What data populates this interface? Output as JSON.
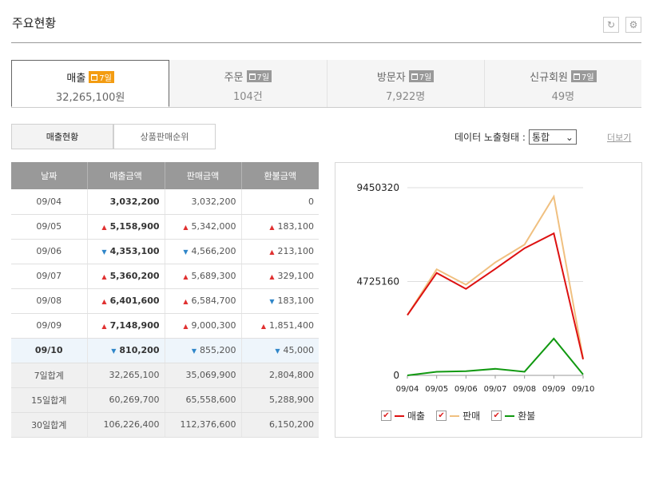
{
  "header": {
    "title": "주요현황"
  },
  "summary": [
    {
      "label": "매출",
      "badge": "7일",
      "value": "32,265,100원"
    },
    {
      "label": "주문",
      "badge": "7일",
      "value": "104건"
    },
    {
      "label": "방문자",
      "badge": "7일",
      "value": "7,922명"
    },
    {
      "label": "신규회원",
      "badge": "7일",
      "value": "49명"
    }
  ],
  "tabs": [
    {
      "label": "매출현황"
    },
    {
      "label": "상품판매순위"
    }
  ],
  "display_type": {
    "label": "데이터 노출형태 :",
    "selected": "통합"
  },
  "more_label": "더보기",
  "table": {
    "headers": [
      "날짜",
      "매출금액",
      "판매금액",
      "환불금액"
    ],
    "rows": [
      {
        "date": "09/04",
        "sales": "3,032,200",
        "sold": "3,032,200",
        "refund": "0",
        "sales_dir": "",
        "sold_dir": "",
        "refund_dir": ""
      },
      {
        "date": "09/05",
        "sales": "5,158,900",
        "sold": "5,342,000",
        "refund": "183,100",
        "sales_dir": "up",
        "sold_dir": "up",
        "refund_dir": "up"
      },
      {
        "date": "09/06",
        "sales": "4,353,100",
        "sold": "4,566,200",
        "refund": "213,100",
        "sales_dir": "down",
        "sold_dir": "down",
        "refund_dir": "up"
      },
      {
        "date": "09/07",
        "sales": "5,360,200",
        "sold": "5,689,300",
        "refund": "329,100",
        "sales_dir": "up",
        "sold_dir": "up",
        "refund_dir": "up"
      },
      {
        "date": "09/08",
        "sales": "6,401,600",
        "sold": "6,584,700",
        "refund": "183,100",
        "sales_dir": "up",
        "sold_dir": "up",
        "refund_dir": "down"
      },
      {
        "date": "09/09",
        "sales": "7,148,900",
        "sold": "9,000,300",
        "refund": "1,851,400",
        "sales_dir": "up",
        "sold_dir": "up",
        "refund_dir": "up"
      },
      {
        "date": "09/10",
        "sales": "810,200",
        "sold": "855,200",
        "refund": "45,000",
        "sales_dir": "down",
        "sold_dir": "down",
        "refund_dir": "down"
      }
    ],
    "totals": [
      {
        "label": "7일합계",
        "sales": "32,265,100",
        "sold": "35,069,900",
        "refund": "2,804,800"
      },
      {
        "label": "15일합계",
        "sales": "60,269,700",
        "sold": "65,558,600",
        "refund": "5,288,900"
      },
      {
        "label": "30일합계",
        "sales": "106,226,400",
        "sold": "112,376,600",
        "refund": "6,150,200"
      }
    ]
  },
  "chart_data": {
    "type": "line",
    "x": [
      "09/04",
      "09/05",
      "09/06",
      "09/07",
      "09/08",
      "09/09",
      "09/10"
    ],
    "yticks": [
      "9450320",
      "4725160",
      "0"
    ],
    "ylim": [
      0,
      9450320
    ],
    "grid": true,
    "legend_position": "bottom",
    "series": [
      {
        "name": "매출",
        "color": "#dd1111",
        "values": [
          3032200,
          5158900,
          4353100,
          5360200,
          6401600,
          7148900,
          810200
        ]
      },
      {
        "name": "판매",
        "color": "#f0c080",
        "values": [
          3032200,
          5342000,
          4566200,
          5689300,
          6584700,
          9000300,
          855200
        ]
      },
      {
        "name": "환불",
        "color": "#119911",
        "values": [
          0,
          183100,
          213100,
          329100,
          183100,
          1851400,
          45000
        ]
      }
    ]
  }
}
